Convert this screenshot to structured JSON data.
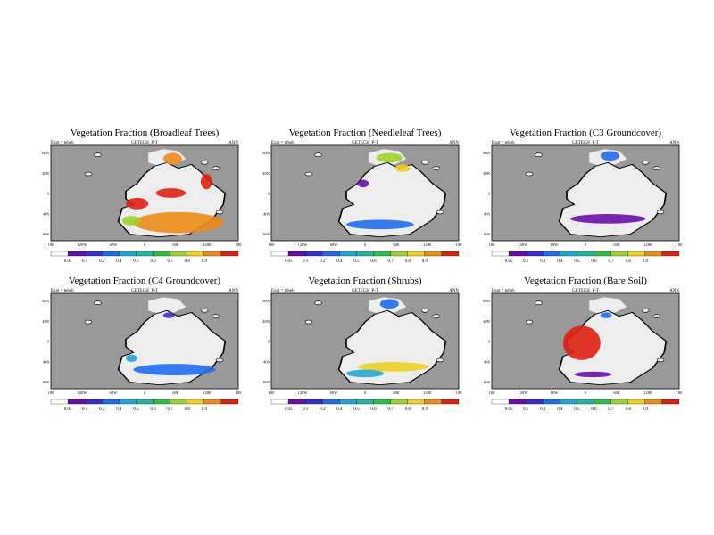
{
  "figure": {
    "colorbar": {
      "levels": [
        "0.05",
        "0.1",
        "0.2",
        "0.4",
        "0.5",
        "0.6",
        "0.7",
        "0.8",
        "0.9"
      ],
      "colors": [
        "#ffffff",
        "#6a0dad",
        "#3b2bd6",
        "#1e6cf0",
        "#1fa6d8",
        "#20b8a0",
        "#2dbf4a",
        "#9fd22a",
        "#f0d020",
        "#f08a18",
        "#e02010"
      ]
    },
    "map_colors": {
      "ocean": "#999999",
      "land": "#ededed",
      "coast": "#000000"
    }
  },
  "chart_data": [
    {
      "type": "heatmap",
      "title": "Vegetation Fraction (Broadleaf Trees)",
      "expt_label": "Expt = tebeh",
      "subtitle": "GETECH_P-T",
      "season": "ANN",
      "y_ticks": [
        "60N",
        "40N",
        "0",
        "40S",
        "60S"
      ],
      "x_ticks": [
        "180",
        "120W",
        "60W",
        "0",
        "60E",
        "120E",
        "180"
      ],
      "cb_labels": [
        "0.05",
        "0.1",
        "0.2",
        "0.4",
        "0.5",
        "0.6",
        "0.7",
        "0.8",
        "0.9"
      ]
    },
    {
      "type": "heatmap",
      "title": "Vegetation Fraction (Needleleaf Trees)",
      "expt_label": "Expt = tebeh",
      "subtitle": "GETECH_P-T",
      "season": "ANN",
      "y_ticks": [
        "60N",
        "40N",
        "0",
        "40S",
        "60S"
      ],
      "x_ticks": [
        "180",
        "120W",
        "60W",
        "0",
        "60E",
        "120E",
        "180"
      ],
      "cb_labels": [
        "0.05",
        "0.1",
        "0.2",
        "0.4",
        "0.5",
        "0.6",
        "0.7",
        "0.8",
        "0.9"
      ]
    },
    {
      "type": "heatmap",
      "title": "Vegetation Fraction (C3 Groundcover)",
      "expt_label": "Expt = tebeh",
      "subtitle": "GETECH_P-T",
      "season": "ANN",
      "y_ticks": [
        "60N",
        "40N",
        "0",
        "40S",
        "60S"
      ],
      "x_ticks": [
        "180",
        "120W",
        "60W",
        "0",
        "60E",
        "120E",
        "180"
      ],
      "cb_labels": [
        "0.05",
        "0.1",
        "0.2",
        "0.4",
        "0.5",
        "0.6",
        "0.7",
        "0.8",
        "0.9"
      ]
    },
    {
      "type": "heatmap",
      "title": "Vegetation Fraction (C4 Groundcover)",
      "expt_label": "Expt = tebeh",
      "subtitle": "GETECH_P-T",
      "season": "ANN",
      "y_ticks": [
        "60N",
        "40N",
        "0",
        "40S",
        "60S"
      ],
      "x_ticks": [
        "180",
        "120W",
        "60W",
        "0",
        "60E",
        "120E",
        "180"
      ],
      "cb_labels": [
        "0.05",
        "0.1",
        "0.2",
        "0.4",
        "0.5",
        "0.6",
        "0.7",
        "0.8",
        "0.9"
      ]
    },
    {
      "type": "heatmap",
      "title": "Vegetation Fraction (Shrubs)",
      "expt_label": "Expt = tebeh",
      "subtitle": "GETECH_P-T",
      "season": "ANN",
      "y_ticks": [
        "60N",
        "40N",
        "0",
        "40S",
        "60S"
      ],
      "x_ticks": [
        "180",
        "120W",
        "60W",
        "0",
        "60E",
        "120E",
        "180"
      ],
      "cb_labels": [
        "0.05",
        "0.1",
        "0.2",
        "0.4",
        "0.5",
        "0.6",
        "0.7",
        "0.8",
        "0.9"
      ]
    },
    {
      "type": "heatmap",
      "title": "Vegetation Fraction (Bare Soil)",
      "expt_label": "Expt = tebeh",
      "subtitle": "GETECH_P-T",
      "season": "ANN",
      "y_ticks": [
        "60N",
        "40N",
        "0",
        "40S",
        "60S"
      ],
      "x_ticks": [
        "180",
        "120W",
        "60W",
        "0",
        "60E",
        "120E",
        "180"
      ],
      "cb_labels": [
        "0.05",
        "0.1",
        "0.2",
        "0.4",
        "0.5",
        "0.6",
        "0.7",
        "0.8",
        "0.9"
      ]
    }
  ]
}
